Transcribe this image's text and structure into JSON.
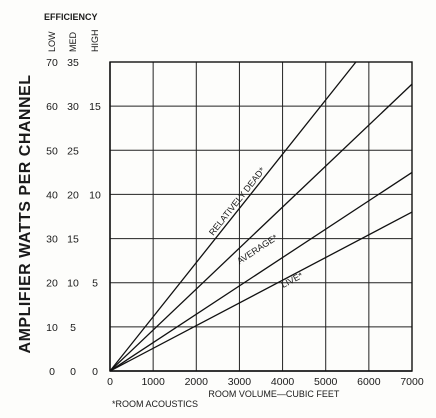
{
  "chart_data": {
    "type": "line",
    "header": "EFFICIENCY",
    "efficiency_levels": [
      "LOW",
      "MED",
      "HIGH"
    ],
    "ylabel": "AMPLIFIER WATTS PER CHANNEL",
    "xlabel": "ROOM VOLUME—CUBIC FEET",
    "footnote": "*ROOM ACOUSTICS",
    "xlim": [
      0,
      7000
    ],
    "ylim": [
      0,
      70
    ],
    "grid": true,
    "x_ticks": [
      "0",
      "1000",
      "2000",
      "3000",
      "4000",
      "5000",
      "6000",
      "7000"
    ],
    "x_tick_values": [
      0,
      1000,
      2000,
      3000,
      4000,
      5000,
      6000,
      7000
    ],
    "y_axis_low": {
      "values": [
        0,
        10,
        20,
        30,
        40,
        50,
        60,
        70
      ],
      "labels": [
        "0",
        "10",
        "20",
        "30",
        "40",
        "50",
        "60",
        "70"
      ]
    },
    "y_axis_med": {
      "values": [
        0,
        10,
        20,
        30,
        40,
        50,
        60,
        70
      ],
      "labels": [
        "0",
        "5",
        "10",
        "15",
        "20",
        "25",
        "30",
        "35"
      ]
    },
    "y_axis_high": {
      "values": [
        0,
        20,
        40,
        60
      ],
      "labels": [
        "0",
        "5",
        "10",
        "15"
      ]
    },
    "series": [
      {
        "name": "RELATIVELY DEAD*",
        "points": [
          [
            0,
            0
          ],
          [
            5700,
            70
          ]
        ]
      },
      {
        "name": "",
        "points": [
          [
            0,
            0
          ],
          [
            7000,
            65
          ]
        ]
      },
      {
        "name": "AVERAGE*",
        "points": [
          [
            0,
            0
          ],
          [
            7000,
            45
          ]
        ]
      },
      {
        "name": "LIVE*",
        "points": [
          [
            0,
            0
          ],
          [
            7000,
            36
          ]
        ]
      }
    ],
    "series_label_positions": [
      {
        "series": 0,
        "x": 3000,
        "y": 38
      },
      {
        "series": 2,
        "x": 3450,
        "y": 27
      },
      {
        "series": 3,
        "x": 4250,
        "y": 20
      }
    ]
  }
}
